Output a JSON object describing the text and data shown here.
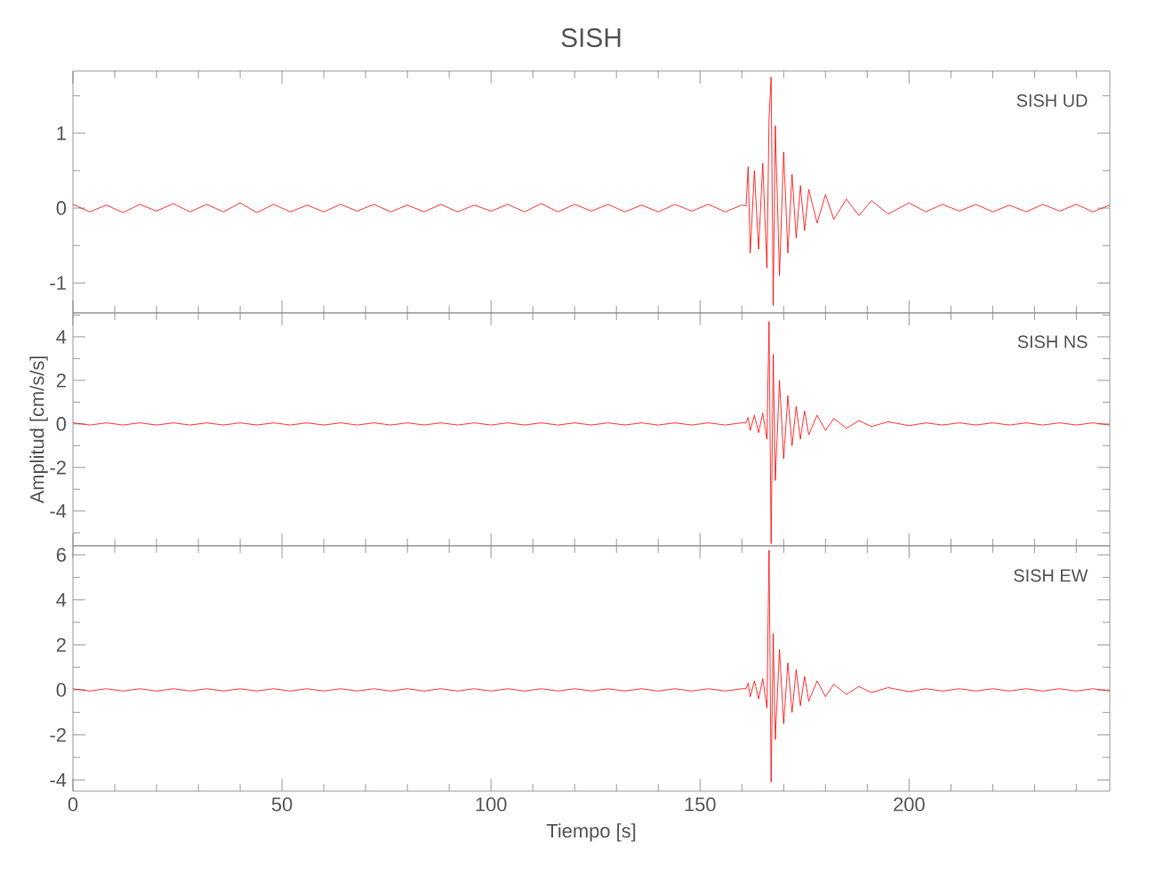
{
  "chart_data": [
    {
      "type": "line",
      "title": "SISH",
      "color": "#ff0000",
      "annotations": [
        "SISH   UD"
      ],
      "tick_labels": "y",
      "x": [
        0,
        4,
        8,
        12,
        16,
        20,
        24,
        28,
        32,
        36,
        40,
        44,
        48,
        52,
        56,
        60,
        64,
        68,
        72,
        76,
        80,
        84,
        88,
        92,
        96,
        100,
        104,
        108,
        112,
        116,
        120,
        124,
        128,
        132,
        136,
        140,
        144,
        148,
        152,
        156,
        160,
        161,
        161.5,
        162,
        163,
        164,
        165,
        166,
        166.5,
        167,
        167.5,
        168,
        169,
        170,
        171,
        172,
        173,
        174,
        175,
        176,
        178,
        180,
        182,
        185,
        188,
        191,
        195,
        200,
        204,
        208,
        212,
        216,
        220,
        224,
        228,
        232,
        236,
        240,
        244,
        248
      ],
      "values": [
        0.05,
        -0.05,
        0.04,
        -0.06,
        0.05,
        -0.04,
        0.06,
        -0.05,
        0.05,
        -0.05,
        0.07,
        -0.06,
        0.05,
        -0.05,
        0.04,
        -0.05,
        0.05,
        -0.04,
        0.05,
        -0.05,
        0.04,
        -0.05,
        0.05,
        -0.05,
        0.04,
        -0.04,
        0.05,
        -0.05,
        0.06,
        -0.05,
        0.05,
        -0.04,
        0.05,
        -0.05,
        0.04,
        -0.05,
        0.05,
        -0.04,
        0.05,
        -0.05,
        0.04,
        0.03,
        0.55,
        -0.6,
        0.5,
        -0.55,
        0.6,
        -0.8,
        1.2,
        1.75,
        -1.3,
        1.1,
        -0.9,
        0.75,
        -0.6,
        0.45,
        -0.4,
        0.3,
        -0.3,
        0.25,
        -0.2,
        0.18,
        -0.15,
        0.12,
        -0.1,
        0.1,
        -0.08,
        0.07,
        -0.05,
        0.05,
        -0.04,
        0.05,
        -0.05,
        0.04,
        -0.05,
        0.05,
        -0.04,
        0.05,
        -0.05,
        0.04
      ],
      "xlim": [
        0,
        248
      ],
      "ylim": [
        -1.4,
        1.83
      ],
      "xticks": [
        0,
        {
          "value": 10,
          "label": null
        },
        {
          "value": 20,
          "label": null
        },
        {
          "value": 30,
          "label": null
        },
        {
          "value": 40,
          "label": null
        },
        50,
        {
          "value": 60,
          "label": null
        },
        {
          "value": 70,
          "label": null
        },
        {
          "value": 80,
          "label": null
        },
        {
          "value": 90,
          "label": null
        },
        100,
        {
          "value": 110,
          "label": null
        },
        {
          "value": 120,
          "label": null
        },
        {
          "value": 130,
          "label": null
        },
        {
          "value": 140,
          "label": null
        },
        150,
        {
          "value": 160,
          "label": null
        },
        {
          "value": 170,
          "label": null
        },
        {
          "value": 180,
          "label": null
        },
        {
          "value": 190,
          "label": null
        },
        200,
        {
          "value": 210,
          "label": null
        },
        {
          "value": 220,
          "label": null
        },
        {
          "value": 230,
          "label": null
        },
        {
          "value": 240,
          "label": null
        }
      ],
      "yticks": [
        -1,
        {
          "value": -0.5,
          "label": null
        },
        0,
        {
          "value": 0.5,
          "label": null
        },
        1,
        {
          "value": 1.5,
          "label": null
        }
      ]
    },
    {
      "type": "line",
      "ylabel": "Amplitud [cm/s/s]",
      "color": "#ff0000",
      "annotations": [
        "SISH   NS"
      ],
      "tick_labels": "y",
      "x": [
        0,
        4,
        8,
        12,
        16,
        20,
        24,
        28,
        32,
        36,
        40,
        44,
        48,
        52,
        56,
        60,
        64,
        68,
        72,
        76,
        80,
        84,
        88,
        92,
        96,
        100,
        104,
        108,
        112,
        116,
        120,
        124,
        128,
        132,
        136,
        140,
        144,
        148,
        152,
        156,
        160,
        161,
        161.5,
        162,
        163,
        164,
        165,
        166,
        166.5,
        167,
        167.5,
        168,
        169,
        170,
        171,
        172,
        173,
        174,
        175,
        176,
        178,
        180,
        182,
        185,
        188,
        191,
        195,
        200,
        204,
        208,
        212,
        216,
        220,
        224,
        228,
        232,
        236,
        240,
        244,
        248
      ],
      "values": [
        0.05,
        -0.05,
        0.05,
        -0.05,
        0.05,
        -0.05,
        0.05,
        -0.05,
        0.05,
        -0.05,
        0.05,
        -0.05,
        0.05,
        -0.05,
        0.05,
        -0.05,
        0.05,
        -0.05,
        0.05,
        -0.05,
        0.05,
        -0.05,
        0.05,
        -0.05,
        0.05,
        -0.05,
        0.05,
        -0.05,
        0.05,
        -0.05,
        0.05,
        -0.05,
        0.05,
        -0.05,
        0.05,
        -0.05,
        0.05,
        -0.05,
        0.05,
        -0.05,
        0.05,
        0.05,
        0.3,
        -0.3,
        0.4,
        -0.4,
        0.5,
        -0.7,
        4.7,
        -5.5,
        3.2,
        -2.6,
        2.0,
        -1.6,
        1.3,
        -1.0,
        0.8,
        -0.7,
        0.6,
        -0.5,
        0.4,
        -0.3,
        0.25,
        -0.2,
        0.15,
        -0.12,
        0.1,
        -0.08,
        0.05,
        -0.05,
        0.05,
        -0.05,
        0.05,
        -0.05,
        0.05,
        -0.05,
        0.05,
        -0.05,
        0.05,
        -0.05
      ],
      "xlim": [
        0,
        248
      ],
      "ylim": [
        -5.6,
        5.1
      ],
      "xticks": [
        0,
        {
          "value": 10,
          "label": null
        },
        {
          "value": 20,
          "label": null
        },
        {
          "value": 30,
          "label": null
        },
        {
          "value": 40,
          "label": null
        },
        50,
        {
          "value": 60,
          "label": null
        },
        {
          "value": 70,
          "label": null
        },
        {
          "value": 80,
          "label": null
        },
        {
          "value": 90,
          "label": null
        },
        100,
        {
          "value": 110,
          "label": null
        },
        {
          "value": 120,
          "label": null
        },
        {
          "value": 130,
          "label": null
        },
        {
          "value": 140,
          "label": null
        },
        150,
        {
          "value": 160,
          "label": null
        },
        {
          "value": 170,
          "label": null
        },
        {
          "value": 180,
          "label": null
        },
        {
          "value": 190,
          "label": null
        },
        200,
        {
          "value": 210,
          "label": null
        },
        {
          "value": 220,
          "label": null
        },
        {
          "value": 230,
          "label": null
        },
        {
          "value": 240,
          "label": null
        }
      ],
      "yticks": [
        {
          "value": -5,
          "label": null
        },
        -4,
        {
          "value": -3,
          "label": null
        },
        -2,
        {
          "value": -1,
          "label": null
        },
        0,
        {
          "value": 1,
          "label": null
        },
        2,
        {
          "value": 3,
          "label": null
        },
        4,
        {
          "value": 5,
          "label": null
        }
      ]
    },
    {
      "type": "line",
      "xlabel": "Tiempo [s]",
      "color": "#ff0000",
      "annotations": [
        "SISH   EW"
      ],
      "x": [
        0,
        4,
        8,
        12,
        16,
        20,
        24,
        28,
        32,
        36,
        40,
        44,
        48,
        52,
        56,
        60,
        64,
        68,
        72,
        76,
        80,
        84,
        88,
        92,
        96,
        100,
        104,
        108,
        112,
        116,
        120,
        124,
        128,
        132,
        136,
        140,
        144,
        148,
        152,
        156,
        160,
        161,
        161.5,
        162,
        163,
        164,
        165,
        166,
        166.5,
        167,
        167.5,
        168,
        169,
        170,
        171,
        172,
        173,
        174,
        175,
        176,
        178,
        180,
        182,
        185,
        188,
        191,
        195,
        200,
        204,
        208,
        212,
        216,
        220,
        224,
        228,
        232,
        236,
        240,
        244,
        248
      ],
      "values": [
        0.05,
        -0.05,
        0.05,
        -0.05,
        0.05,
        -0.05,
        0.05,
        -0.05,
        0.05,
        -0.05,
        0.05,
        -0.05,
        0.05,
        -0.05,
        0.05,
        -0.05,
        0.05,
        -0.05,
        0.05,
        -0.05,
        0.05,
        -0.05,
        0.05,
        -0.05,
        0.05,
        -0.05,
        0.05,
        -0.05,
        0.05,
        -0.05,
        0.05,
        -0.05,
        0.05,
        -0.05,
        0.05,
        -0.05,
        0.05,
        -0.05,
        0.05,
        -0.05,
        0.05,
        0.05,
        0.3,
        -0.3,
        0.4,
        -0.4,
        0.5,
        -0.8,
        6.2,
        -4.1,
        2.5,
        -2.2,
        1.8,
        -1.5,
        1.2,
        -1.0,
        0.9,
        -0.7,
        0.6,
        -0.5,
        0.4,
        -0.3,
        0.25,
        -0.2,
        0.15,
        -0.12,
        0.1,
        -0.08,
        0.05,
        -0.05,
        0.05,
        -0.05,
        0.05,
        -0.05,
        0.05,
        -0.05,
        0.05,
        -0.05,
        0.05,
        -0.05
      ],
      "xlim": [
        0,
        248
      ],
      "ylim": [
        -4.5,
        6.4
      ],
      "xticks": [
        0,
        {
          "value": 10,
          "label": null
        },
        {
          "value": 20,
          "label": null
        },
        {
          "value": 30,
          "label": null
        },
        {
          "value": 40,
          "label": null
        },
        50,
        {
          "value": 60,
          "label": null
        },
        {
          "value": 70,
          "label": null
        },
        {
          "value": 80,
          "label": null
        },
        {
          "value": 90,
          "label": null
        },
        100,
        {
          "value": 110,
          "label": null
        },
        {
          "value": 120,
          "label": null
        },
        {
          "value": 130,
          "label": null
        },
        {
          "value": 140,
          "label": null
        },
        150,
        {
          "value": 160,
          "label": null
        },
        {
          "value": 170,
          "label": null
        },
        {
          "value": 180,
          "label": null
        },
        {
          "value": 190,
          "label": null
        },
        200,
        {
          "value": 210,
          "label": null
        },
        {
          "value": 220,
          "label": null
        },
        {
          "value": 230,
          "label": null
        },
        {
          "value": 240,
          "label": null
        }
      ],
      "yticks": [
        -4,
        {
          "value": -3,
          "label": null
        },
        -2,
        {
          "value": -1,
          "label": null
        },
        0,
        {
          "value": 1,
          "label": null
        },
        2,
        {
          "value": 3,
          "label": null
        },
        4,
        {
          "value": 5,
          "label": null
        },
        6
      ]
    }
  ]
}
